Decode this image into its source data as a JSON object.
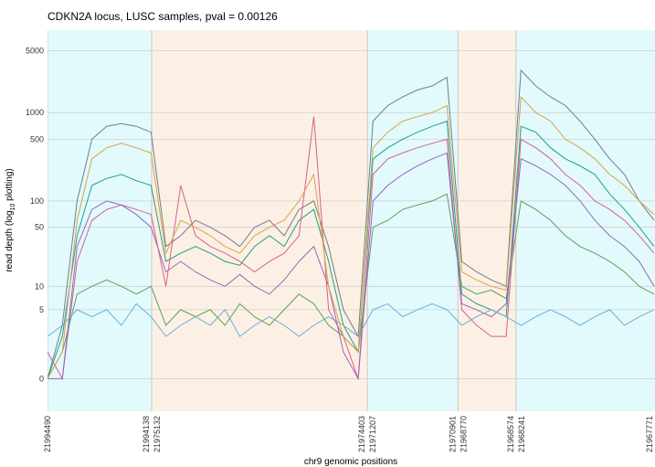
{
  "chart_data": {
    "type": "line",
    "title": "CDKN2A locus, LUSC samples, pval = 0.00126",
    "x_label": "chr9 genomic positions",
    "y_label": [
      "read depth (log",
      "10",
      " plotting)"
    ],
    "y_scale": "log10(x+1)",
    "ylim": [
      -0.57,
      8500
    ],
    "yticks": [
      0,
      5,
      10,
      50,
      100,
      500,
      1000,
      5000
    ],
    "xlim": [
      0,
      2053
    ],
    "grid": true,
    "regions": [
      {
        "start": "21994490",
        "end": "21994138",
        "color": "#e2fafc"
      },
      {
        "start": "21975132",
        "end": "21974403",
        "color": "#fcf0e4"
      },
      {
        "start": "21971207",
        "end": "21970901",
        "color": "#e2fafc"
      },
      {
        "start": "21968770",
        "end": "21968574",
        "color": "#fcf0e4"
      },
      {
        "start": "21968241",
        "end": "21967771",
        "color": "#e2fafc"
      }
    ],
    "x": [
      0,
      50,
      100,
      150,
      200,
      250,
      300,
      350,
      400,
      450,
      500,
      550,
      600,
      650,
      700,
      750,
      800,
      850,
      900,
      950,
      1000,
      1050,
      1100,
      1150,
      1200,
      1250,
      1300,
      1350,
      1400,
      1450,
      1500,
      1550,
      1600,
      1650,
      1700,
      1750,
      1800,
      1850,
      1900,
      1950,
      2000,
      2050
    ],
    "series": [
      {
        "color": "#6f7d8c",
        "values": [
          0,
          3,
          100,
          500,
          700,
          750,
          700,
          600,
          30,
          40,
          60,
          50,
          40,
          30,
          50,
          60,
          40,
          80,
          100,
          30,
          5,
          2,
          800,
          1200,
          1500,
          1800,
          2000,
          2500,
          20,
          15,
          12,
          10,
          3000,
          2000,
          1500,
          1200,
          800,
          500,
          300,
          200,
          100,
          60
        ]
      },
      {
        "color": "#1f9e89",
        "values": [
          0,
          2,
          40,
          150,
          180,
          200,
          170,
          150,
          20,
          25,
          30,
          25,
          20,
          18,
          30,
          40,
          30,
          60,
          80,
          20,
          3,
          1,
          300,
          400,
          500,
          600,
          700,
          800,
          8,
          6,
          5,
          4,
          700,
          600,
          400,
          300,
          250,
          200,
          120,
          80,
          50,
          30
        ]
      },
      {
        "color": "#d6608f",
        "values": [
          1,
          0,
          20,
          60,
          80,
          90,
          80,
          70,
          10,
          150,
          40,
          30,
          25,
          20,
          15,
          20,
          25,
          40,
          900,
          5,
          2,
          0,
          200,
          300,
          350,
          400,
          450,
          500,
          5,
          3,
          2,
          2,
          500,
          400,
          300,
          200,
          150,
          100,
          80,
          60,
          40,
          25
        ]
      },
      {
        "color": "#5aa05a",
        "values": [
          0,
          1,
          8,
          10,
          12,
          10,
          8,
          10,
          3,
          5,
          4,
          5,
          3,
          6,
          4,
          3,
          5,
          8,
          6,
          3,
          2,
          1,
          50,
          60,
          80,
          90,
          100,
          120,
          10,
          8,
          9,
          7,
          100,
          80,
          60,
          40,
          30,
          25,
          20,
          15,
          10,
          8
        ]
      },
      {
        "color": "#9467bd",
        "values": [
          0,
          0,
          30,
          80,
          100,
          90,
          70,
          50,
          15,
          20,
          15,
          12,
          10,
          14,
          10,
          8,
          12,
          20,
          30,
          10,
          1,
          0,
          100,
          150,
          200,
          250,
          300,
          350,
          6,
          5,
          4,
          6,
          300,
          250,
          200,
          150,
          100,
          60,
          40,
          30,
          20,
          10
        ]
      },
      {
        "color": "#6baed6",
        "values": [
          2,
          3,
          5,
          4,
          5,
          3,
          6,
          4,
          2,
          3,
          4,
          3,
          5,
          2,
          3,
          4,
          3,
          2,
          3,
          4,
          3,
          2,
          5,
          6,
          4,
          5,
          6,
          5,
          3,
          4,
          5,
          4,
          3,
          4,
          5,
          4,
          3,
          4,
          5,
          3,
          4,
          5
        ]
      },
      {
        "color": "#d9a34a",
        "values": [
          0,
          1,
          60,
          300,
          400,
          450,
          400,
          350,
          25,
          60,
          50,
          40,
          30,
          25,
          40,
          50,
          60,
          100,
          200,
          10,
          2,
          1,
          400,
          600,
          800,
          900,
          1000,
          1200,
          15,
          12,
          10,
          9,
          1500,
          1000,
          800,
          500,
          400,
          300,
          200,
          150,
          100,
          70
        ]
      }
    ]
  }
}
